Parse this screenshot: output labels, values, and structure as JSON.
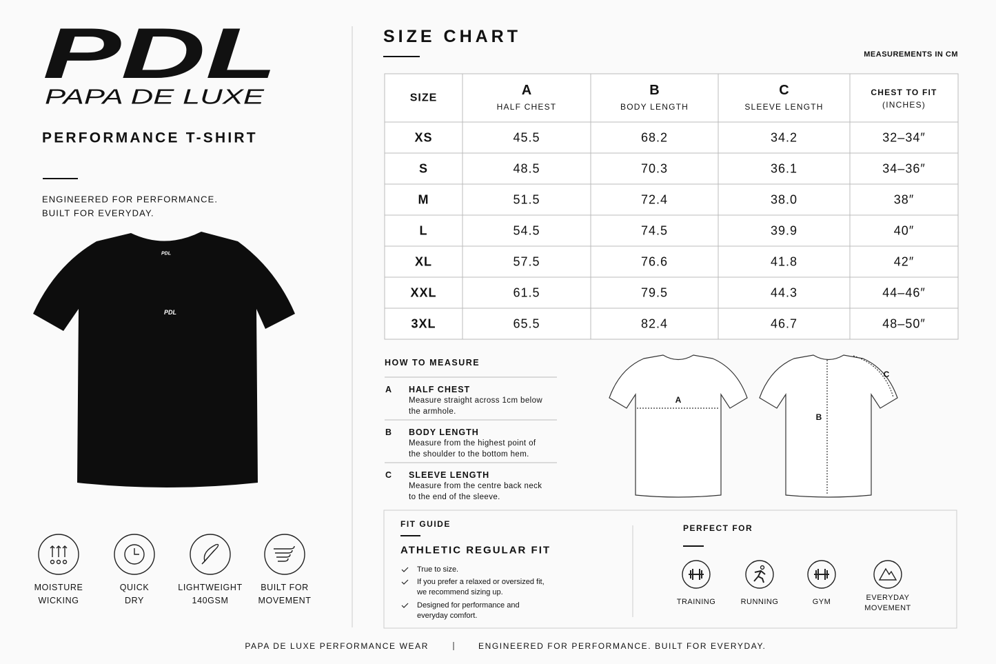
{
  "brand": {
    "logo": "PDL",
    "name": "PAPA DE LUXE"
  },
  "product": {
    "title": "PERFORMANCE T-SHIRT",
    "tagline": [
      "ENGINEERED FOR PERFORMANCE.",
      "BUILT FOR EVERYDAY."
    ],
    "shirt_print": "PDL"
  },
  "features": [
    [
      "MOISTURE",
      "WICKING"
    ],
    [
      "QUICK",
      "DRY"
    ],
    [
      "LIGHTWEIGHT",
      "140GSM"
    ],
    [
      "BUILT FOR",
      "MOVEMENT"
    ]
  ],
  "size_chart": {
    "title": "SIZE CHART",
    "unit_note": "MEASUREMENTS IN CM",
    "header": [
      {
        "lines": [
          "SIZE"
        ]
      },
      {
        "letter": "A",
        "lines": [
          "HALF CHEST"
        ]
      },
      {
        "letter": "B",
        "lines": [
          "BODY LENGTH"
        ]
      },
      {
        "letter": "C",
        "lines": [
          "SLEEVE LENGTH"
        ]
      },
      {
        "lines": [
          "CHEST TO FIT",
          "(INCHES)"
        ]
      }
    ],
    "rows": [
      [
        "XS",
        "45.5",
        "68.2",
        "34.2",
        "32–34″"
      ],
      [
        "S",
        "48.5",
        "70.3",
        "36.1",
        "34–36″"
      ],
      [
        "M",
        "51.5",
        "72.4",
        "38.0",
        "38″"
      ],
      [
        "L",
        "54.5",
        "74.5",
        "39.9",
        "40″"
      ],
      [
        "XL",
        "57.5",
        "76.6",
        "41.8",
        "42″"
      ],
      [
        "XXL",
        "61.5",
        "79.5",
        "44.3",
        "44–46″"
      ],
      [
        "3XL",
        "65.5",
        "82.4",
        "46.7",
        "48–50″"
      ]
    ]
  },
  "how_to_measure": {
    "title": "HOW TO MEASURE",
    "items": [
      {
        "letter": "A",
        "title": "HALF CHEST",
        "desc": [
          "Measure straight across 1cm below",
          "the armhole."
        ]
      },
      {
        "letter": "B",
        "title": "BODY LENGTH",
        "desc": [
          "Measure from the highest point of",
          "the shoulder to the bottom hem."
        ]
      },
      {
        "letter": "C",
        "title": "SLEEVE LENGTH",
        "desc": [
          "Measure from the centre back neck",
          "to the end of the sleeve."
        ]
      }
    ]
  },
  "diagram": {
    "front": "A",
    "back_length": "B",
    "back_sleeve": "C"
  },
  "fit_guide": {
    "title": "FIT GUIDE",
    "fit": "ATHLETIC REGULAR FIT",
    "checks": [
      [
        "True to size."
      ],
      [
        "If you prefer a relaxed or oversized fit,",
        "we recommend sizing up."
      ],
      [
        "Designed for performance and",
        "everyday comfort."
      ]
    ]
  },
  "perfect_for": {
    "title": "PERFECT FOR",
    "items": [
      [
        "TRAINING"
      ],
      [
        "RUNNING"
      ],
      [
        "GYM"
      ],
      [
        "EVERYDAY",
        "MOVEMENT"
      ]
    ]
  },
  "footer": {
    "left": "PAPA DE LUXE PERFORMANCE WEAR",
    "right": "ENGINEERED FOR PERFORMANCE. BUILT FOR EVERYDAY."
  }
}
